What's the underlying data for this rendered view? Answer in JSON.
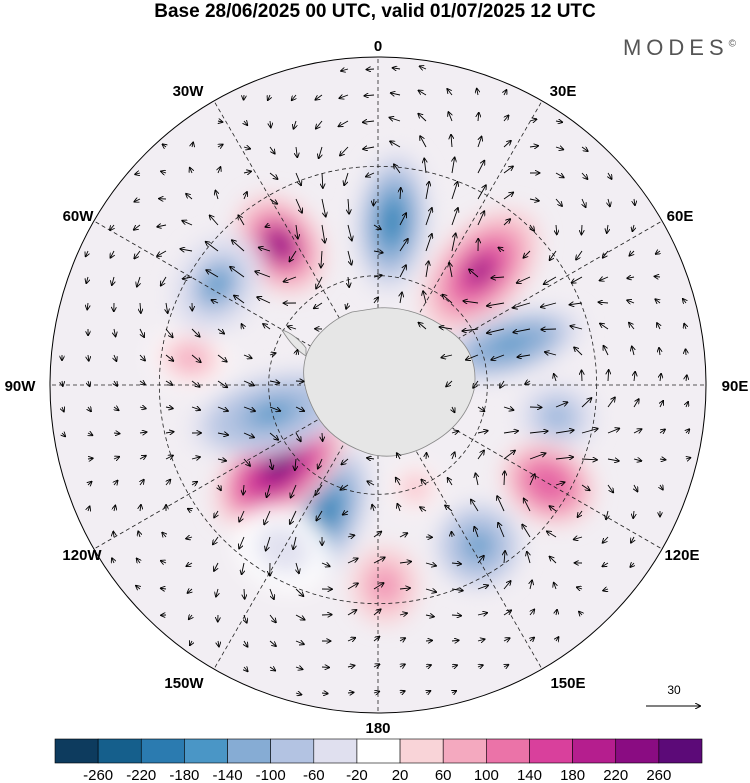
{
  "title": "Base 28/06/2025 00 UTC, valid 01/07/2025 12 UTC",
  "brand": {
    "name": "MODES",
    "mark": "©"
  },
  "longitude_labels": [
    "0",
    "30E",
    "60E",
    "90E",
    "120E",
    "150E",
    "180",
    "150W",
    "120W",
    "90W",
    "60W",
    "30W"
  ],
  "vector_reference": {
    "value": "30"
  },
  "colorbar": {
    "levels": [
      "-260",
      "-220",
      "-180",
      "-140",
      "-100",
      "-60",
      "-20",
      "20",
      "60",
      "100",
      "140",
      "180",
      "220",
      "260"
    ],
    "colors": [
      "#0d3b5e",
      "#155f8c",
      "#2b7bb0",
      "#4a96c6",
      "#86acd4",
      "#b3c3e2",
      "#e0e0ef",
      "#ffffff",
      "#f9d4d8",
      "#f4a9bf",
      "#eb73a8",
      "#d9409c",
      "#b51e8e",
      "#8a0c82",
      "#5c0a78"
    ]
  },
  "anomalies": [
    {
      "lon": -35,
      "lat": -43,
      "value": 230,
      "rx": 42,
      "ry": 55
    },
    {
      "lon": 5,
      "lat": -45,
      "value": -200,
      "rx": 38,
      "ry": 72
    },
    {
      "lon": 42,
      "lat": -48,
      "value": 220,
      "rx": 45,
      "ry": 75
    },
    {
      "lon": 73,
      "lat": -52,
      "value": -170,
      "rx": 32,
      "ry": 75
    },
    {
      "lon": 100,
      "lat": -40,
      "value": -110,
      "rx": 35,
      "ry": 40
    },
    {
      "lon": 120,
      "lat": -36,
      "value": 170,
      "rx": 40,
      "ry": 50
    },
    {
      "lon": 148,
      "lat": -38,
      "value": -160,
      "rx": 45,
      "ry": 45
    },
    {
      "lon": 178,
      "lat": -35,
      "value": 100,
      "rx": 35,
      "ry": 40
    },
    {
      "lon": -158,
      "lat": -52,
      "value": -210,
      "rx": 40,
      "ry": 75
    },
    {
      "lon": -130,
      "lat": -55,
      "value": 260,
      "rx": 45,
      "ry": 80
    },
    {
      "lon": -105,
      "lat": -60,
      "value": -160,
      "rx": 40,
      "ry": 85
    },
    {
      "lon": -82,
      "lat": -38,
      "value": 90,
      "rx": 30,
      "ry": 40
    },
    {
      "lon": -58,
      "lat": -38,
      "value": -150,
      "rx": 55,
      "ry": 42
    },
    {
      "lon": 160,
      "lat": -60,
      "value": 70,
      "rx": 25,
      "ry": 25
    },
    {
      "lon": -150,
      "lat": -38,
      "value": -40,
      "rx": 50,
      "ry": 40
    }
  ]
}
